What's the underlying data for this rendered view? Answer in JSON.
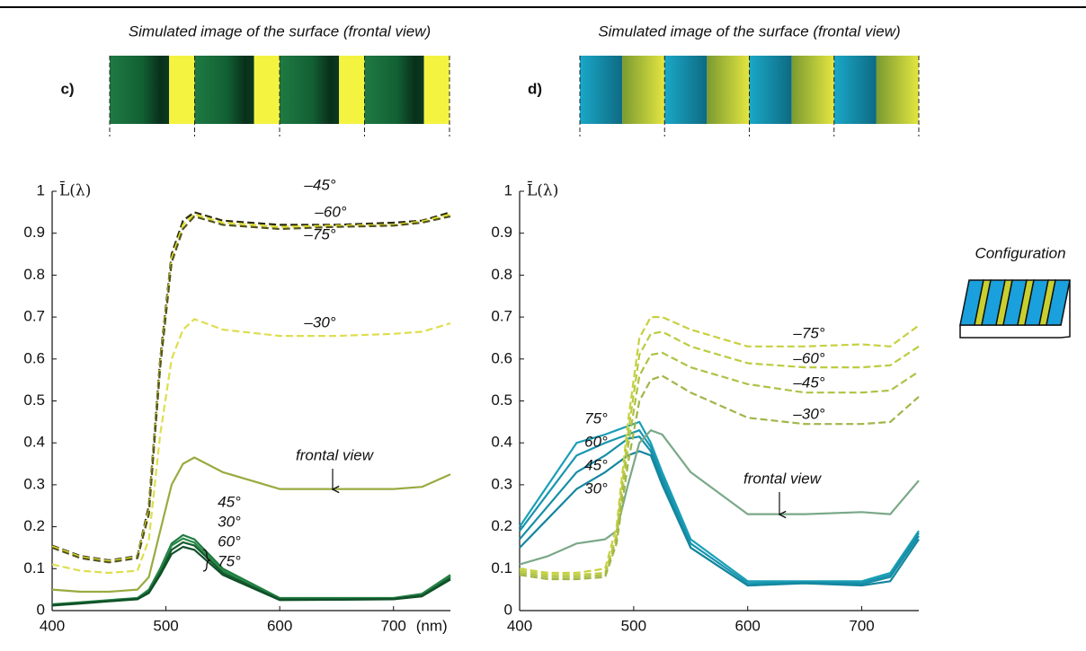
{
  "chart_data": [
    {
      "type": "line",
      "panel_label": "c)",
      "image_title": "Simulated image of the surface (frontal view)",
      "y_label": "L̄(λ)",
      "x_unit": "(nm)",
      "x": [
        400,
        425,
        450,
        475,
        485,
        495,
        505,
        515,
        525,
        550,
        600,
        650,
        700,
        725,
        750
      ],
      "xlim": [
        400,
        750
      ],
      "xticks": [
        400,
        500,
        600,
        700
      ],
      "ylim": [
        0,
        1
      ],
      "yticks": [
        0,
        0.1,
        0.2,
        0.3,
        0.4,
        0.5,
        0.6,
        0.7,
        0.8,
        0.9,
        1
      ],
      "series": [
        {
          "name": "–45°",
          "color": "#2a2a10",
          "style": "dashed",
          "values": [
            0.155,
            0.13,
            0.12,
            0.13,
            0.25,
            0.6,
            0.85,
            0.93,
            0.95,
            0.93,
            0.92,
            0.92,
            0.925,
            0.93,
            0.95
          ]
        },
        {
          "name": "–60°",
          "color": "#e0e030",
          "style": "dashed",
          "values": [
            0.153,
            0.128,
            0.118,
            0.128,
            0.24,
            0.59,
            0.84,
            0.92,
            0.945,
            0.925,
            0.915,
            0.918,
            0.92,
            0.928,
            0.945
          ]
        },
        {
          "name": "–75°",
          "color": "#555520",
          "style": "dashed",
          "values": [
            0.15,
            0.125,
            0.115,
            0.125,
            0.23,
            0.58,
            0.83,
            0.91,
            0.94,
            0.92,
            0.91,
            0.915,
            0.918,
            0.925,
            0.94
          ]
        },
        {
          "name": "–30°",
          "color": "#dede50",
          "style": "dashed",
          "values": [
            0.11,
            0.095,
            0.09,
            0.095,
            0.17,
            0.42,
            0.6,
            0.67,
            0.695,
            0.67,
            0.655,
            0.655,
            0.66,
            0.665,
            0.685
          ]
        },
        {
          "name": "frontal view",
          "color": "#9aaa40",
          "style": "solid",
          "values": [
            0.05,
            0.045,
            0.045,
            0.05,
            0.08,
            0.19,
            0.3,
            0.35,
            0.365,
            0.33,
            0.29,
            0.29,
            0.29,
            0.295,
            0.325
          ]
        },
        {
          "name": "45°",
          "color": "#1e7a40",
          "style": "solid",
          "values": [
            0.015,
            0.02,
            0.025,
            0.03,
            0.05,
            0.1,
            0.16,
            0.18,
            0.17,
            0.1,
            0.03,
            0.03,
            0.03,
            0.04,
            0.085
          ]
        },
        {
          "name": "30°",
          "color": "#2a8a48",
          "style": "solid",
          "values": [
            0.014,
            0.019,
            0.024,
            0.029,
            0.048,
            0.095,
            0.155,
            0.172,
            0.162,
            0.095,
            0.028,
            0.028,
            0.029,
            0.038,
            0.082
          ]
        },
        {
          "name": "60°",
          "color": "#155c30",
          "style": "solid",
          "values": [
            0.013,
            0.018,
            0.023,
            0.028,
            0.045,
            0.09,
            0.145,
            0.163,
            0.155,
            0.09,
            0.027,
            0.027,
            0.028,
            0.036,
            0.078
          ]
        },
        {
          "name": "75°",
          "color": "#0f5028",
          "style": "solid",
          "values": [
            0.012,
            0.017,
            0.022,
            0.027,
            0.042,
            0.085,
            0.135,
            0.152,
            0.145,
            0.085,
            0.025,
            0.026,
            0.027,
            0.034,
            0.074
          ]
        }
      ]
    },
    {
      "type": "line",
      "panel_label": "d)",
      "image_title": "Simulated image of the surface (frontal view)",
      "y_label": "L̄(λ)",
      "x": [
        400,
        425,
        450,
        475,
        485,
        495,
        505,
        515,
        525,
        550,
        600,
        650,
        700,
        725,
        750
      ],
      "xlim": [
        400,
        750
      ],
      "xticks": [
        400,
        500,
        600,
        700
      ],
      "ylim": [
        0,
        1
      ],
      "yticks": [
        0,
        0.1,
        0.2,
        0.3,
        0.4,
        0.5,
        0.6,
        0.7,
        0.8,
        0.9,
        1
      ],
      "series": [
        {
          "name": "75°",
          "color": "#1a9fb8",
          "style": "solid",
          "values": [
            0.2,
            0.3,
            0.4,
            0.42,
            0.43,
            0.44,
            0.45,
            0.4,
            0.33,
            0.17,
            0.07,
            0.07,
            0.07,
            0.09,
            0.19
          ]
        },
        {
          "name": "60°",
          "color": "#1896ae",
          "style": "solid",
          "values": [
            0.19,
            0.28,
            0.37,
            0.4,
            0.41,
            0.42,
            0.43,
            0.39,
            0.32,
            0.16,
            0.065,
            0.068,
            0.066,
            0.085,
            0.185
          ]
        },
        {
          "name": "45°",
          "color": "#168ea6",
          "style": "solid",
          "values": [
            0.17,
            0.25,
            0.33,
            0.37,
            0.39,
            0.41,
            0.415,
            0.38,
            0.31,
            0.15,
            0.06,
            0.066,
            0.063,
            0.08,
            0.178
          ]
        },
        {
          "name": "30°",
          "color": "#14869e",
          "style": "solid",
          "values": [
            0.15,
            0.22,
            0.29,
            0.33,
            0.35,
            0.37,
            0.38,
            0.37,
            0.3,
            0.15,
            0.06,
            0.065,
            0.06,
            0.07,
            0.17
          ]
        },
        {
          "name": "frontal view",
          "color": "#7aa888",
          "style": "solid",
          "values": [
            0.11,
            0.13,
            0.16,
            0.17,
            0.19,
            0.3,
            0.4,
            0.43,
            0.42,
            0.33,
            0.23,
            0.23,
            0.235,
            0.23,
            0.31
          ]
        },
        {
          "name": "–75°",
          "color": "#c8d040",
          "style": "dashed",
          "values": [
            0.1,
            0.09,
            0.09,
            0.1,
            0.2,
            0.45,
            0.65,
            0.7,
            0.7,
            0.67,
            0.63,
            0.63,
            0.635,
            0.63,
            0.68
          ]
        },
        {
          "name": "–60°",
          "color": "#bccc40",
          "style": "dashed",
          "values": [
            0.095,
            0.085,
            0.085,
            0.09,
            0.18,
            0.42,
            0.61,
            0.66,
            0.665,
            0.63,
            0.59,
            0.58,
            0.58,
            0.585,
            0.63
          ]
        },
        {
          "name": "–45°",
          "color": "#aec244",
          "style": "dashed",
          "values": [
            0.09,
            0.08,
            0.08,
            0.085,
            0.17,
            0.39,
            0.56,
            0.61,
            0.615,
            0.58,
            0.54,
            0.52,
            0.52,
            0.525,
            0.57
          ]
        },
        {
          "name": "–30°",
          "color": "#a0b648",
          "style": "dashed",
          "values": [
            0.085,
            0.075,
            0.075,
            0.08,
            0.16,
            0.35,
            0.5,
            0.55,
            0.56,
            0.52,
            0.46,
            0.445,
            0.445,
            0.45,
            0.51
          ]
        }
      ]
    }
  ],
  "configuration_label": "Configuration"
}
